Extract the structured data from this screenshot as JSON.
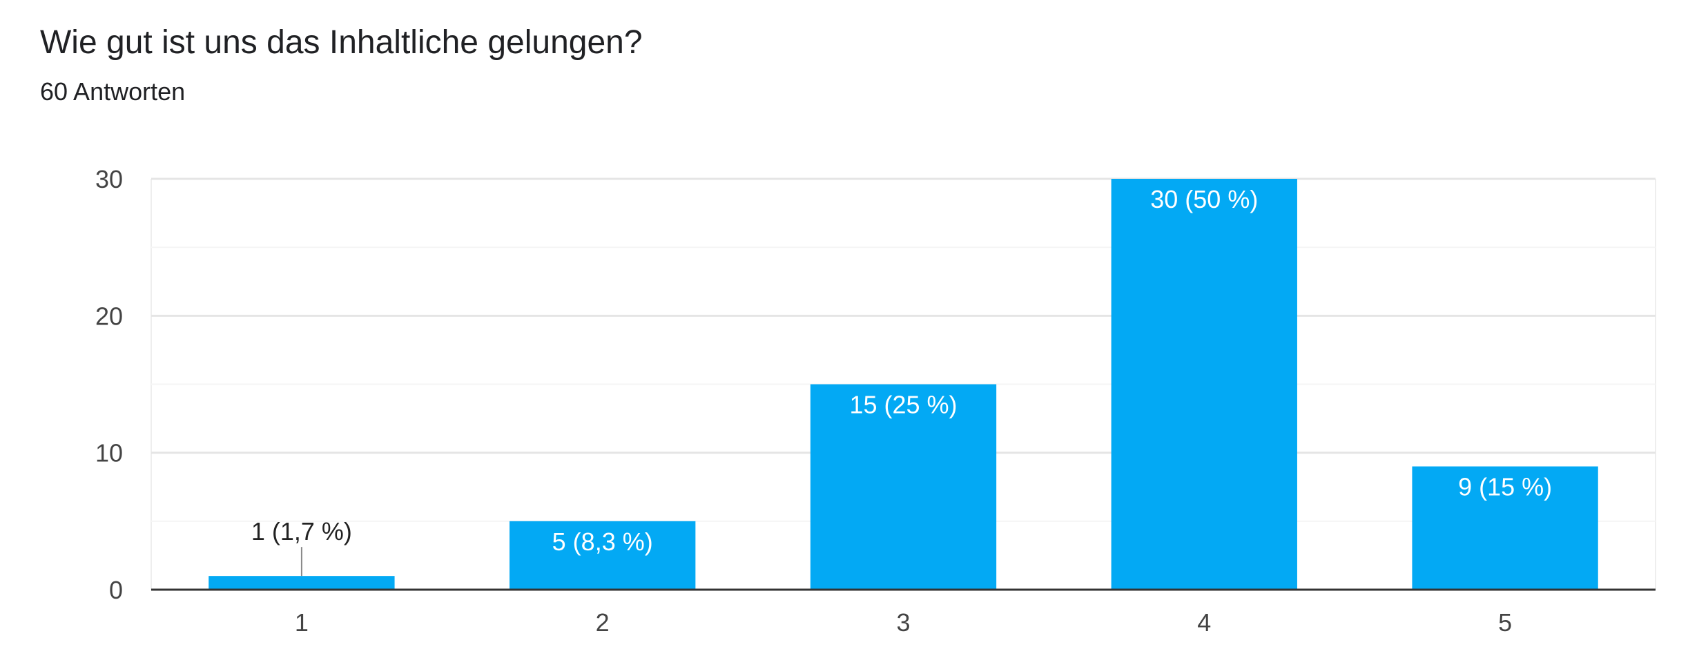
{
  "header": {
    "title": "Wie gut ist uns das Inhaltliche gelungen?",
    "subtitle": "60 Antworten"
  },
  "chart_data": {
    "type": "bar",
    "categories": [
      "1",
      "2",
      "3",
      "4",
      "5"
    ],
    "values": [
      1,
      5,
      15,
      30,
      9
    ],
    "data_labels": [
      "1 (1,7 %)",
      "5 (8,3 %)",
      "15 (25 %)",
      "30 (50 %)",
      "9 (15 %)"
    ],
    "title": "Wie gut ist uns das Inhaltliche gelungen?",
    "subtitle": "60 Antworten",
    "xlabel": "",
    "ylabel": "",
    "ylim": [
      0,
      30
    ],
    "yticks": [
      0,
      10,
      20,
      30
    ],
    "grid": true,
    "bar_color": "#03a9f4"
  }
}
